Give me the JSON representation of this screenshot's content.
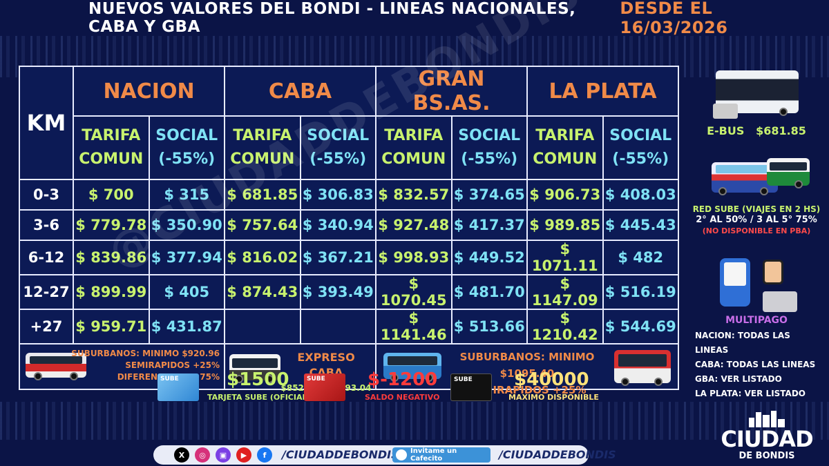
{
  "title": "NUEVOS VALORES DEL BONDI - LINEAS NACIONALES, CABA Y GBA",
  "date": "DESDE EL 16/03/2026",
  "table": {
    "km_header": "KM",
    "regions": [
      "NACION",
      "CABA",
      "GRAN BS.AS.",
      "LA PLATA"
    ],
    "tarifa_l1": "TARIFA",
    "tarifa_l2": "COMUN",
    "social_l1": "SOCIAL",
    "social_l2": "(-55%)",
    "rows": [
      {
        "km": "0-3",
        "values": [
          "$ 700",
          "$ 315",
          "$ 681.85",
          "$ 306.83",
          "$ 832.57",
          "$ 374.65",
          "$ 906.73",
          "$ 408.03"
        ]
      },
      {
        "km": "3-6",
        "values": [
          "$ 779.78",
          "$ 350.90",
          "$ 757.64",
          "$ 340.94",
          "$ 927.48",
          "$ 417.37",
          "$ 989.85",
          "$ 445.43"
        ]
      },
      {
        "km": "6-12",
        "values": [
          "$ 839.86",
          "$ 377.94",
          "$ 816.02",
          "$ 367.21",
          "$ 998.93",
          "$ 449.52",
          "$ 1071.11",
          "$ 482"
        ]
      },
      {
        "km": "12-27",
        "values": [
          "$ 899.99",
          "$ 405",
          "$ 874.43",
          "$ 393.49",
          "$ 1070.45",
          "$ 481.70",
          "$ 1147.09",
          "$ 516.19"
        ]
      },
      {
        "km": "+27",
        "values": [
          "$ 959.71",
          "$ 431.87",
          "",
          "",
          "$ 1141.46",
          "$ 513.66",
          "$ 1210.42",
          "$ 544.69"
        ]
      }
    ],
    "footer": {
      "nacion_line1": "SUBURBANOS: MINIMO $920.96",
      "nacion_line2": "SEMIRAPIDOS +25%",
      "nacion_line3": "DIFERENCIALES +75%",
      "caba_title": "EXPRESO CABA",
      "caba_range": "$852.31 - $1093.04",
      "gba_line1": "SUBURBANOS: MINIMO $1095.40",
      "gba_line2": "SEMIRAPIDOS +25%"
    }
  },
  "side": {
    "ebus_label": "E-BUS",
    "ebus_price": "$681.85",
    "red_sube_l1": "RED SUBE (VIAJES EN 2 HS)",
    "red_sube_l2": "2° AL 50% / 3 AL 5° 75%",
    "red_sube_l3": "(NO DISPONIBLE EN PBA)",
    "multipago": "MULTIPAGO",
    "multipago_lines": [
      "NACION: TODAS LAS LINEAS",
      "CABA: TODAS LAS LINEAS",
      "GBA: VER LISTADO",
      "LA PLATA: VER LISTADO"
    ]
  },
  "cards": {
    "brand": "SUBE",
    "card1_amount": "$1500",
    "card1_label": "TARJETA SUBE (OFICIAL)",
    "card2_amount": "$-1200",
    "card2_label": "SALDO NEGATIVO",
    "card3_amount": "$40000",
    "card3_label": "MAXIMO DISPONIBLE"
  },
  "social": {
    "handle1": "/CIUDADDEBONDIS",
    "cafecito": "Invitame un Cafecito",
    "handle2": "/CIUDADDEBONDIS"
  },
  "logo": {
    "name": "CIUDAD",
    "sub": "DE BONDIS"
  },
  "watermark": "@CIUDADDEBONDIS",
  "colors": {
    "background": "#0b1446",
    "region": "#f08a48",
    "tarifa": "#c8f26e",
    "social": "#7fe2f5",
    "negative": "#ff3b3b",
    "highlight_yellow": "#ffe27a"
  }
}
